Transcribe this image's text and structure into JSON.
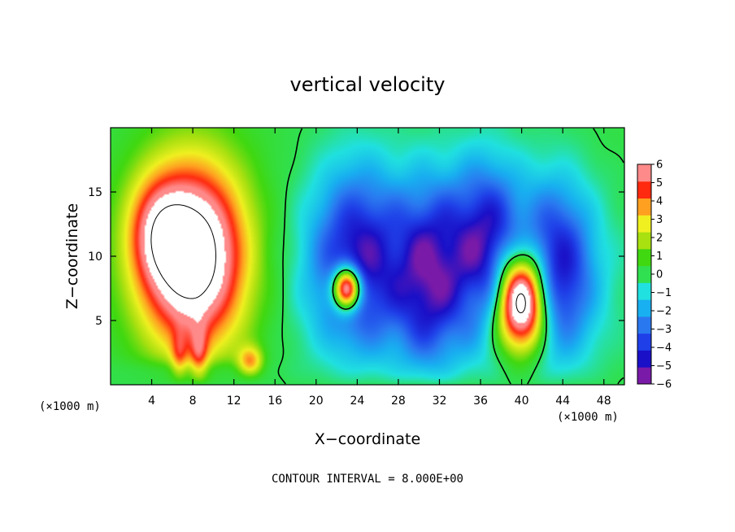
{
  "chart_data": {
    "type": "heatmap",
    "title": "vertical velocity",
    "xlabel": "X−coordinate",
    "ylabel": "Z−coordinate",
    "x_unit": "(×1000 m)",
    "z_unit": "(×1000 m)",
    "xlim": [
      0,
      50
    ],
    "ylim": [
      0,
      20
    ],
    "x_ticks": [
      4,
      8,
      12,
      16,
      20,
      24,
      28,
      32,
      36,
      40,
      44,
      48
    ],
    "y_ticks": [
      5,
      10,
      15
    ],
    "colorbar": {
      "ticks": [
        "6",
        "5",
        "4",
        "3",
        "2",
        "1",
        "0",
        "−1",
        "−2",
        "−3",
        "−4",
        "−5",
        "−6"
      ],
      "range": [
        -6,
        6
      ],
      "colors": [
        "#7a1aa8",
        "#1a10c8",
        "#1f3fe8",
        "#2a78f0",
        "#18b0f0",
        "#20e0e0",
        "#30e050",
        "#40d810",
        "#a8e010",
        "#f0f020",
        "#ffa020",
        "#ff2a10",
        "#ff8a8a"
      ],
      "above_range_color": "#ffffff"
    },
    "grid": false,
    "contour_interval": "CONTOUR INTERVAL = 8.000E+00",
    "features": [
      {
        "kind": "updraft",
        "x": [
          1,
          16
        ],
        "z": [
          0.5,
          18.5
        ],
        "peak": 9
      },
      {
        "kind": "updraft_core",
        "x": [
          21.5,
          24.5
        ],
        "z": [
          6,
          9
        ],
        "peak": 7
      },
      {
        "kind": "downdraft",
        "x": [
          17,
          49
        ],
        "z": [
          1,
          17
        ],
        "min": -5
      },
      {
        "kind": "updraft_core",
        "x": [
          37,
          43
        ],
        "z": [
          2.5,
          10
        ],
        "peak": 8
      }
    ]
  }
}
